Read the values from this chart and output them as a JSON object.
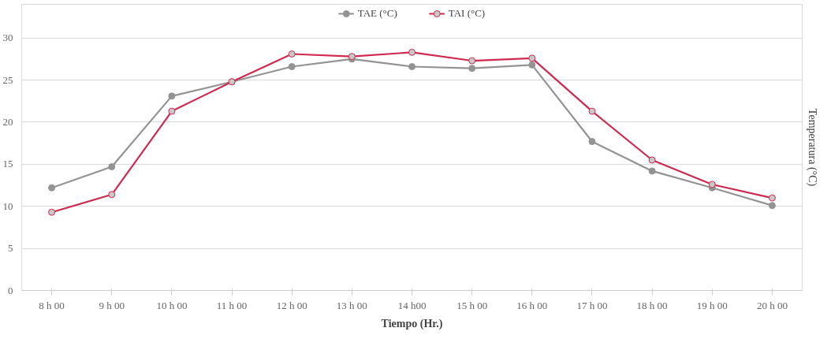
{
  "chart_data": {
    "type": "line",
    "categories": [
      "8 h 00",
      "9 h 00",
      "10 h 00",
      "11 h 00",
      "12 h 00",
      "13 h 00",
      "14 h00",
      "15 h 00",
      "16 h 00",
      "17 h 00",
      "18 h 00",
      "19 h 00",
      "20 h 00"
    ],
    "series": [
      {
        "name": "TAE (°C)",
        "color": "#939393",
        "values": [
          12.2,
          14.7,
          23.1,
          24.8,
          26.6,
          27.5,
          26.6,
          26.4,
          26.8,
          17.7,
          14.2,
          12.2,
          10.1
        ]
      },
      {
        "name": "TAI (°C)",
        "color": "#d0294f",
        "values": [
          9.3,
          11.4,
          21.3,
          24.8,
          28.1,
          27.8,
          28.3,
          27.3,
          27.6,
          21.3,
          15.5,
          12.6,
          11.0
        ]
      }
    ],
    "xlabel": "Tiempo (Hr.)",
    "ylabel": "Temperatura (°C)",
    "ylim": [
      0,
      34
    ],
    "yticks": [
      0,
      5,
      10,
      15,
      20,
      25,
      30
    ],
    "grid": "y",
    "legend": "top",
    "marker": "circle",
    "line_style": "solid"
  }
}
